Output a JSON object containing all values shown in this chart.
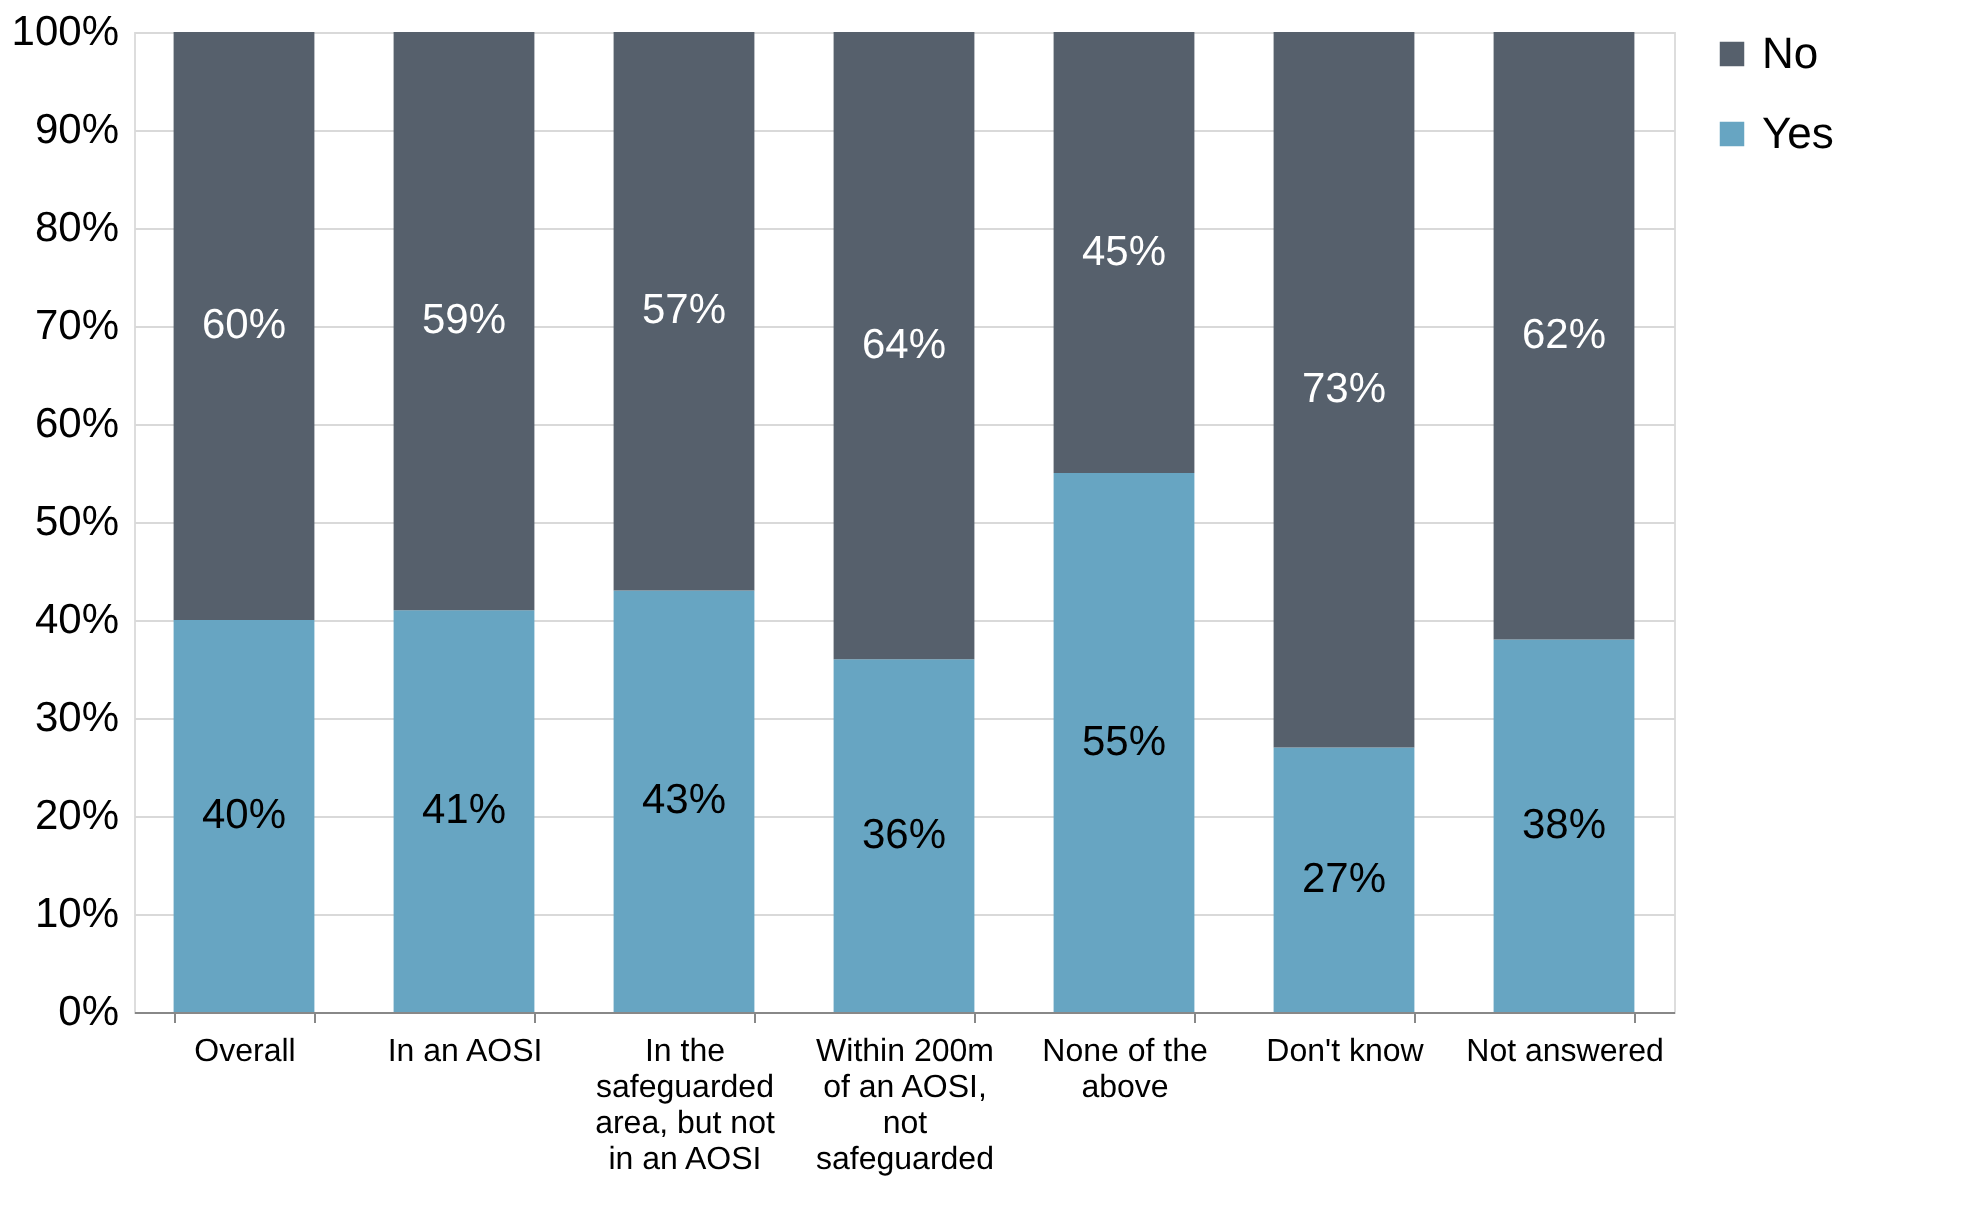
{
  "chart_data": {
    "type": "bar",
    "stacked": true,
    "categories": [
      "Overall",
      "In an AOSI",
      "In the safeguarded area, but not in an AOSI",
      "Within 200m of an AOSI, not safeguarded",
      "None of the above",
      "Don't know",
      "Not answered"
    ],
    "series": [
      {
        "name": "Yes",
        "color": "#67a5c2",
        "values": [
          40,
          41,
          43,
          36,
          55,
          27,
          38
        ],
        "value_labels": [
          "40%",
          "41%",
          "43%",
          "36%",
          "55%",
          "27%",
          "38%"
        ]
      },
      {
        "name": "No",
        "color": "#56606c",
        "values": [
          60,
          59,
          57,
          64,
          45,
          73,
          62
        ],
        "value_labels": [
          "60%",
          "59%",
          "57%",
          "64%",
          "45%",
          "73%",
          "62%"
        ]
      }
    ],
    "ylim": [
      0,
      100
    ],
    "yticks": [
      {
        "value": 0,
        "label": "0%"
      },
      {
        "value": 10,
        "label": "10%"
      },
      {
        "value": 20,
        "label": "20%"
      },
      {
        "value": 30,
        "label": "30%"
      },
      {
        "value": 40,
        "label": "40%"
      },
      {
        "value": 50,
        "label": "50%"
      },
      {
        "value": 60,
        "label": "60%"
      },
      {
        "value": 70,
        "label": "70%"
      },
      {
        "value": 80,
        "label": "80%"
      },
      {
        "value": 90,
        "label": "90%"
      },
      {
        "value": 100,
        "label": "100%"
      }
    ],
    "grid": "y",
    "legend": "right"
  }
}
